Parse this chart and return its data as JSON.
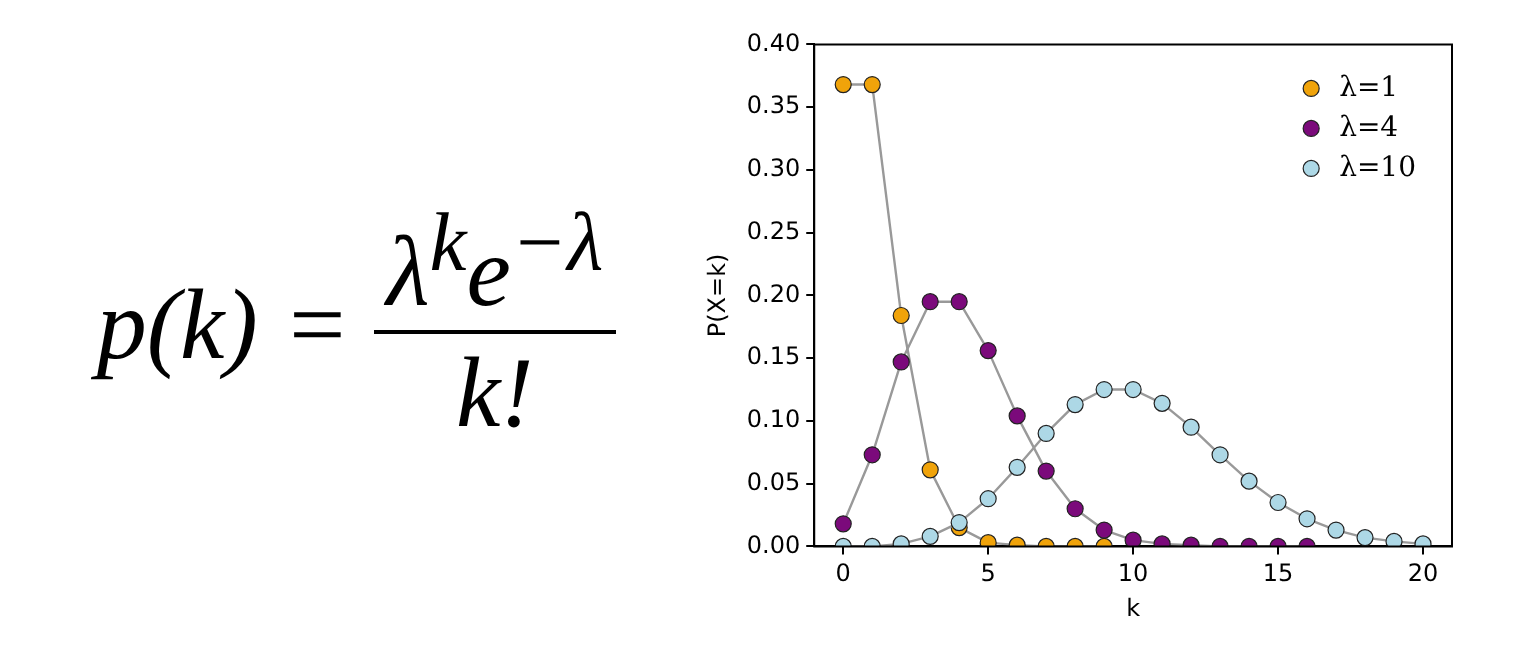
{
  "chart_data": {
    "type": "line",
    "xlabel": "k",
    "ylabel": "P(X=k)",
    "annotations": [
      "p(k) =",
      "λ$^{k}$e$^{−λ}$",
      "k!"
    ],
    "xlim": [
      -1,
      21
    ],
    "xticks": [
      0,
      5,
      10,
      15,
      20
    ],
    "ylim": [
      0,
      0.4
    ],
    "yticks": [
      {
        "value": 0,
        "label": "0.00"
      },
      {
        "value": 0.05,
        "label": "0.05"
      },
      {
        "value": 0.1,
        "label": "0.10"
      },
      {
        "value": 0.15,
        "label": "0.15"
      },
      {
        "value": 0.2,
        "label": "0.20"
      },
      {
        "value": 0.25,
        "label": "0.25"
      },
      {
        "value": 0.3,
        "label": "0.30"
      },
      {
        "value": 0.35,
        "label": "0.35"
      },
      {
        "value": 0.4,
        "label": "0.40"
      }
    ],
    "grid": false,
    "legend": "top right",
    "marker": "circle",
    "line_style": "solid",
    "series": [
      {
        "name": "λ=1",
        "color": "#f0a30a",
        "x": [
          0,
          1,
          2,
          3,
          4,
          5,
          6,
          7,
          8,
          9
        ],
        "values": [
          0.368,
          0.368,
          0.184,
          0.061,
          0.015,
          0.003,
          0.001,
          0,
          0,
          0
        ]
      },
      {
        "name": "λ=4",
        "color": "#7b0a7b",
        "x": [
          0,
          1,
          2,
          3,
          4,
          5,
          6,
          7,
          8,
          9,
          10,
          11,
          12,
          13,
          14,
          15,
          16
        ],
        "values": [
          0.018,
          0.073,
          0.147,
          0.195,
          0.195,
          0.156,
          0.104,
          0.06,
          0.03,
          0.013,
          0.005,
          0.002,
          0.001,
          0,
          0,
          0,
          0
        ]
      },
      {
        "name": "λ=10",
        "color": "#add8e6",
        "x": [
          0,
          1,
          2,
          3,
          4,
          5,
          6,
          7,
          8,
          9,
          10,
          11,
          12,
          13,
          14,
          15,
          16,
          17,
          18,
          19,
          20
        ],
        "values": [
          0,
          0,
          0.002,
          0.008,
          0.019,
          0.038,
          0.063,
          0.09,
          0.113,
          0.125,
          0.125,
          0.114,
          0.095,
          0.073,
          0.052,
          0.035,
          0.022,
          0.013,
          0.007,
          0.004,
          0.002
        ]
      }
    ]
  }
}
